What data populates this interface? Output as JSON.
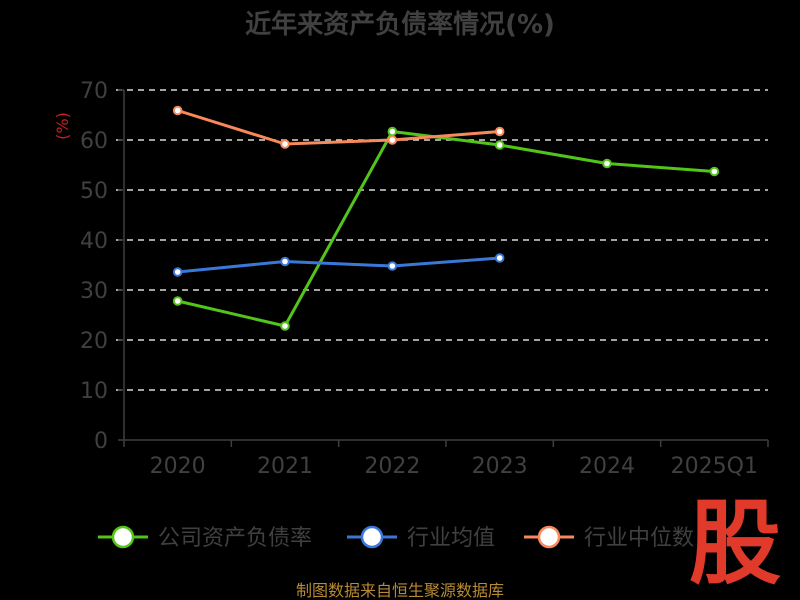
{
  "chart_data": {
    "type": "line",
    "title": "近年来资产负债率情况(%)",
    "ylabel": "(%)",
    "categories": [
      "2020",
      "2021",
      "2022",
      "2023",
      "2024",
      "2025Q1"
    ],
    "ylim": [
      0,
      70
    ],
    "yticks": [
      0,
      10,
      20,
      30,
      40,
      50,
      60,
      70
    ],
    "grid": true,
    "legend_position": "bottom",
    "series": [
      {
        "name": "公司资产负债率",
        "color": "#52c41a",
        "values": [
          27.8,
          22.8,
          61.7,
          59.0,
          55.3,
          53.7
        ]
      },
      {
        "name": "行业均值",
        "color": "#3a78d8",
        "values": [
          33.6,
          35.7,
          34.8,
          36.4,
          null,
          null
        ]
      },
      {
        "name": "行业中位数",
        "color": "#f7895a",
        "values": [
          65.9,
          59.2,
          60.0,
          61.7,
          null,
          null
        ]
      }
    ]
  },
  "footer": {
    "source": "制图数据来自恒生聚源数据库"
  },
  "logo": {
    "text": "股"
  }
}
